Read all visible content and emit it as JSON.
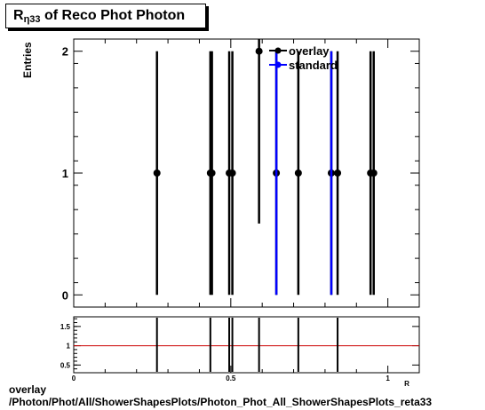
{
  "title": {
    "main": "R",
    "subscript": "η33",
    "rest": " of Reco Phot Photon"
  },
  "footer": {
    "line1": "overlay",
    "line2": "/Photon/Phot/All/ShowerShapesPlots/Photon_Phot_All_ShowerShapesPlots_reta33"
  },
  "chart_data": [
    {
      "type": "scatter",
      "ylabel": "Entries",
      "xlim": [
        0,
        1.1
      ],
      "ylim": [
        -0.1,
        2.1
      ],
      "y_ticks": [
        0,
        1,
        2
      ],
      "legend": {
        "position": "top-right",
        "entries": [
          "overlay",
          "standard"
        ]
      },
      "series": [
        {
          "name": "overlay",
          "color": "#000000",
          "points": [
            {
              "x": 0.265,
              "y": 1,
              "err": 1
            },
            {
              "x": 0.435,
              "y": 1,
              "err": 1
            },
            {
              "x": 0.44,
              "y": 1,
              "err": 1
            },
            {
              "x": 0.495,
              "y": 1,
              "err": 1
            },
            {
              "x": 0.505,
              "y": 1,
              "err": 1
            },
            {
              "x": 0.59,
              "y": 2,
              "err": 1.414
            },
            {
              "x": 0.645,
              "y": 1,
              "err": 1
            },
            {
              "x": 0.715,
              "y": 1,
              "err": 1
            },
            {
              "x": 0.82,
              "y": 1,
              "err": 1
            },
            {
              "x": 0.84,
              "y": 1,
              "err": 1
            },
            {
              "x": 0.945,
              "y": 1,
              "err": 1
            },
            {
              "x": 0.955,
              "y": 1,
              "err": 1
            }
          ]
        },
        {
          "name": "standard",
          "color": "#0000ff",
          "points": [
            {
              "x": 0.645,
              "y": 1,
              "err": 1
            },
            {
              "x": 0.82,
              "y": 1,
              "err": 1
            }
          ]
        }
      ]
    },
    {
      "type": "scatter",
      "xlim": [
        0,
        1.1
      ],
      "ylim": [
        0.3,
        1.75
      ],
      "y_ticks": [
        0.5,
        1,
        1.5
      ],
      "y_tick_labels": [
        "0.5",
        "1",
        "1.5"
      ],
      "x_ticks": [
        0,
        0.5,
        1
      ],
      "x_tick_labels": [
        "0",
        "0.5",
        "1"
      ],
      "x_axis_label": "R",
      "reference_line": {
        "y": 1,
        "color": "#cc0000"
      },
      "ratio_x": [
        0.265,
        0.435,
        0.495,
        0.505,
        0.59,
        0.715,
        0.84
      ]
    }
  ]
}
